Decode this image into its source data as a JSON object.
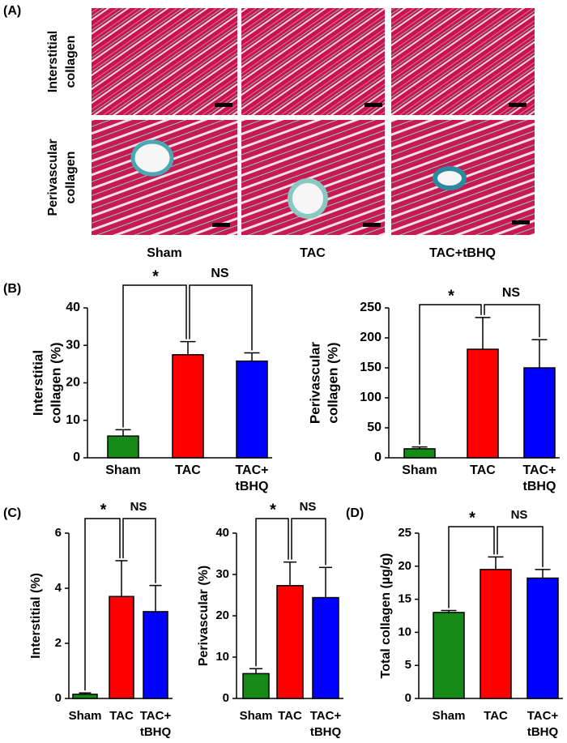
{
  "panel_labels": [
    "(A)",
    "(B)",
    "(C)",
    "(D)"
  ],
  "micrographs": {
    "row_labels": [
      [
        "Interstitial",
        "collagen"
      ],
      [
        "Perivascular",
        "collagen"
      ]
    ],
    "column_labels": [
      "Sham",
      "TAC",
      "TAC+tBHQ"
    ]
  },
  "chart_data": [
    {
      "type": "bar",
      "y_label": [
        "Interstitial",
        "collagen (%)"
      ],
      "categories": [
        [
          "Sham"
        ],
        [
          "TAC"
        ],
        [
          "TAC+",
          "tBHQ"
        ]
      ],
      "values": [
        5.8,
        27.5,
        25.8
      ],
      "errors": [
        1.7,
        3.5,
        2.2
      ],
      "colors": [
        "#168a16",
        "#ff0000",
        "#0000ff"
      ],
      "ylim": [
        0,
        40
      ],
      "yticks": [
        0,
        10,
        20,
        30,
        40
      ],
      "comparisons": [
        {
          "label": "*",
          "groups": [
            0,
            1
          ]
        },
        {
          "label": "NS",
          "groups": [
            1,
            2
          ]
        }
      ]
    },
    {
      "type": "bar",
      "y_label": [
        "Perivascular",
        "collagen (%)"
      ],
      "categories": [
        [
          "Sham"
        ],
        [
          "TAC"
        ],
        [
          "TAC+",
          "tBHQ"
        ]
      ],
      "values": [
        15,
        181,
        150
      ],
      "errors": [
        3,
        53,
        47
      ],
      "colors": [
        "#168a16",
        "#ff0000",
        "#0000ff"
      ],
      "ylim": [
        0,
        250
      ],
      "yticks": [
        0,
        50,
        100,
        150,
        200,
        250
      ],
      "comparisons": [
        {
          "label": "*",
          "groups": [
            0,
            1
          ]
        },
        {
          "label": "NS",
          "groups": [
            1,
            2
          ]
        }
      ]
    },
    {
      "type": "bar",
      "y_label": [
        "Interstitial (%)"
      ],
      "categories": [
        [
          "Sham"
        ],
        [
          "TAC"
        ],
        [
          "TAC+",
          "tBHQ"
        ]
      ],
      "values": [
        0.15,
        3.7,
        3.15
      ],
      "errors": [
        0.05,
        1.3,
        0.95
      ],
      "colors": [
        "#168a16",
        "#ff0000",
        "#0000ff"
      ],
      "ylim": [
        0,
        6
      ],
      "yticks": [
        0,
        2,
        4,
        6
      ],
      "comparisons": [
        {
          "label": "*",
          "groups": [
            0,
            1
          ]
        },
        {
          "label": "NS",
          "groups": [
            1,
            2
          ]
        }
      ]
    },
    {
      "type": "bar",
      "y_label": [
        "Perivascular (%)"
      ],
      "categories": [
        [
          "Sham"
        ],
        [
          "TAC"
        ],
        [
          "TAC+",
          "tBHQ"
        ]
      ],
      "values": [
        6,
        27.3,
        24.4
      ],
      "errors": [
        1.2,
        5.7,
        7.3
      ],
      "colors": [
        "#168a16",
        "#ff0000",
        "#0000ff"
      ],
      "ylim": [
        0,
        40
      ],
      "yticks": [
        0,
        10,
        20,
        30,
        40
      ],
      "comparisons": [
        {
          "label": "*",
          "groups": [
            0,
            1
          ]
        },
        {
          "label": "NS",
          "groups": [
            1,
            2
          ]
        }
      ]
    },
    {
      "type": "bar",
      "y_label": [
        "Total collagen (µg/g)"
      ],
      "categories": [
        [
          "Sham"
        ],
        [
          "TAC"
        ],
        [
          "TAC+",
          "tBHQ"
        ]
      ],
      "values": [
        13,
        19.5,
        18.2
      ],
      "errors": [
        0.3,
        1.9,
        1.3
      ],
      "colors": [
        "#168a16",
        "#ff0000",
        "#0000ff"
      ],
      "ylim": [
        0,
        25
      ],
      "yticks": [
        0,
        5,
        10,
        15,
        20,
        25
      ],
      "comparisons": [
        {
          "label": "*",
          "groups": [
            0,
            1
          ]
        },
        {
          "label": "NS",
          "groups": [
            1,
            2
          ]
        }
      ]
    }
  ]
}
